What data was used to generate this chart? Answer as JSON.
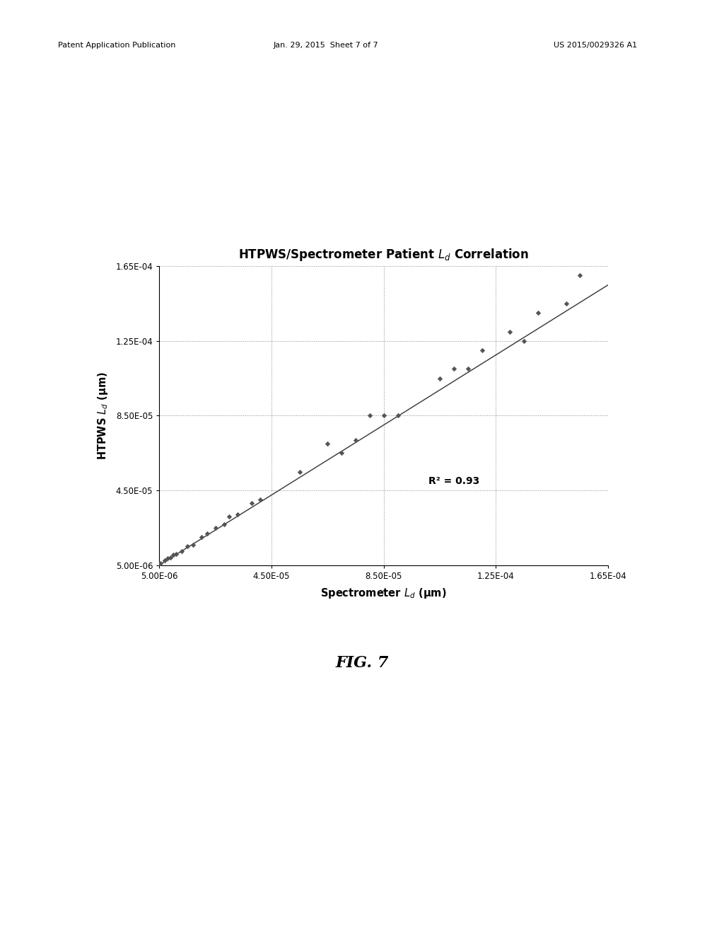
{
  "title": "HTPWS/Spectrometer Patient $L_d$ Correlation",
  "xlabel": "Spectrometer $L_d$ (μm)",
  "ylabel": "HTPWS $L_d$ (μm)",
  "r_squared_text": "R² = 0.93",
  "scatter_points": [
    [
      5e-06,
      5.5e-06
    ],
    [
      5.5e-06,
      6e-06
    ],
    [
      7e-06,
      7.5e-06
    ],
    [
      8e-06,
      8.5e-06
    ],
    [
      9e-06,
      9e-06
    ],
    [
      1e-05,
      1.05e-05
    ],
    [
      1.1e-05,
      1.1e-05
    ],
    [
      1.3e-05,
      1.25e-05
    ],
    [
      1.5e-05,
      1.5e-05
    ],
    [
      1.7e-05,
      1.6e-05
    ],
    [
      2e-05,
      2e-05
    ],
    [
      2.2e-05,
      2.2e-05
    ],
    [
      2.5e-05,
      2.5e-05
    ],
    [
      2.8e-05,
      2.7e-05
    ],
    [
      3e-05,
      3.1e-05
    ],
    [
      3.3e-05,
      3.2e-05
    ],
    [
      3.8e-05,
      3.8e-05
    ],
    [
      4.1e-05,
      4e-05
    ],
    [
      5.5e-05,
      5.5e-05
    ],
    [
      6.5e-05,
      7e-05
    ],
    [
      7e-05,
      6.5e-05
    ],
    [
      7.5e-05,
      7.2e-05
    ],
    [
      8e-05,
      8.5e-05
    ],
    [
      8.5e-05,
      8.5e-05
    ],
    [
      9e-05,
      8.5e-05
    ],
    [
      0.000105,
      0.000105
    ],
    [
      0.00011,
      0.00011
    ],
    [
      0.000115,
      0.00011
    ],
    [
      0.00012,
      0.00012
    ],
    [
      0.00013,
      0.00013
    ],
    [
      0.000135,
      0.000125
    ],
    [
      0.00014,
      0.00014
    ],
    [
      0.00015,
      0.000145
    ],
    [
      0.000155,
      0.00016
    ]
  ],
  "fit_x": [
    5e-06,
    0.000165
  ],
  "fit_y": [
    5e-06,
    0.000155
  ],
  "xmin": 5e-06,
  "xmax": 0.000165,
  "ymin": 5e-06,
  "ymax": 0.000165,
  "xticks": [
    5e-06,
    4.5e-05,
    8.5e-05,
    0.000125,
    0.000165
  ],
  "yticks": [
    5e-06,
    4.5e-05,
    8.5e-05,
    0.000125,
    0.000165
  ],
  "xtick_labels": [
    "5.00E-06",
    "4.50E-05",
    "8.50E-05",
    "1.25E-04",
    "1.65E-04"
  ],
  "ytick_labels": [
    "5.00E-06",
    "4.50E-05",
    "8.50E-05",
    "1.25E-04",
    "1.65E-04"
  ],
  "marker_color": "#555555",
  "line_color": "#333333",
  "background_color": "#ffffff",
  "header_left": "Patent Application Publication",
  "header_mid": "Jan. 29, 2015  Sheet 7 of 7",
  "header_right": "US 2015/0029326 A1",
  "fig_label": "FIG. 7",
  "title_fontsize": 12,
  "label_fontsize": 10.5,
  "tick_fontsize": 8.5,
  "annotation_fontsize": 10,
  "header_fontsize": 8
}
